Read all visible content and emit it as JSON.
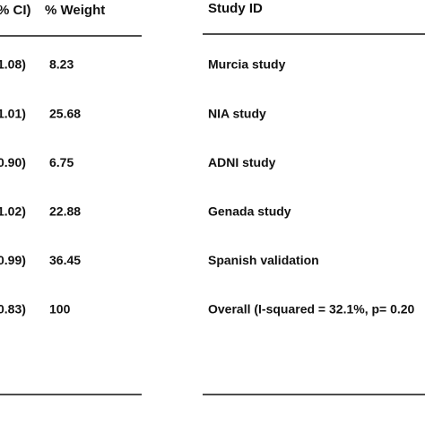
{
  "left_table": {
    "headers": [
      "% CI)",
      "% Weight"
    ],
    "rows": [
      [
        "1.08)",
        "8.23"
      ],
      [
        "1.01)",
        "25.68"
      ],
      [
        "0.90)",
        "6.75"
      ],
      [
        "1.02)",
        "22.88"
      ],
      [
        "0.99)",
        "36.45"
      ],
      [
        "0.83)",
        "100"
      ]
    ]
  },
  "right_table": {
    "header": "Study ID",
    "rows": [
      "Murcia study",
      "NIA study",
      "ADNI study",
      "Genada study",
      "Spanish validation",
      "Overall (I-squared = 32.1%, p= 0.20"
    ]
  }
}
